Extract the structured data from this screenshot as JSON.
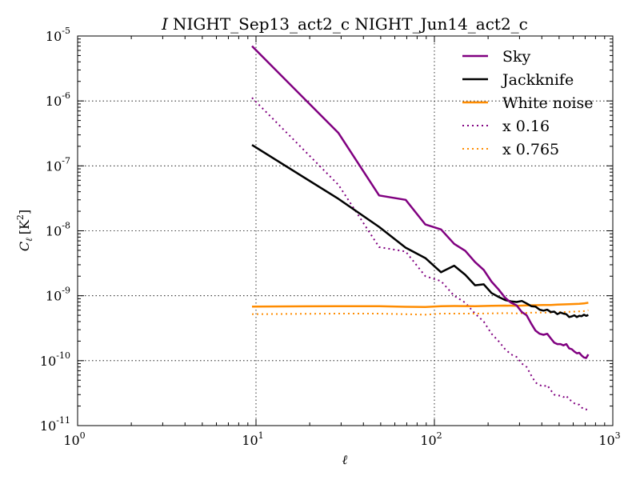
{
  "chart_data": {
    "type": "line",
    "title_symbol": "I",
    "title": "NIGHT_Sep13_act2_c NIGHT_Jun14_act2_c",
    "xlabel": "ℓ",
    "ylabel": "C",
    "ylabel_sub": "ℓ",
    "ylabel_unit": "[K",
    "ylabel_unit_exp": "2",
    "ylabel_unit_close": "]",
    "xscale": "log",
    "yscale": "log",
    "xlim": [
      1,
      1000
    ],
    "ylim": [
      1e-11,
      1e-05
    ],
    "grid": true,
    "legend_position": "top-right",
    "x_ticks": [
      {
        "value": 1,
        "base": "10",
        "exp": "0"
      },
      {
        "value": 10,
        "base": "10",
        "exp": "1"
      },
      {
        "value": 100,
        "base": "10",
        "exp": "2"
      },
      {
        "value": 1000,
        "base": "10",
        "exp": "3"
      }
    ],
    "y_ticks": [
      {
        "value": 1e-11,
        "base": "10",
        "exp": "-11"
      },
      {
        "value": 1e-10,
        "base": "10",
        "exp": "-10"
      },
      {
        "value": 1e-09,
        "base": "10",
        "exp": "-9"
      },
      {
        "value": 1e-08,
        "base": "10",
        "exp": "-8"
      },
      {
        "value": 1e-07,
        "base": "10",
        "exp": "-7"
      },
      {
        "value": 1e-06,
        "base": "10",
        "exp": "-6"
      },
      {
        "value": 1e-05,
        "base": "10",
        "exp": "-5"
      }
    ],
    "series": [
      {
        "name": "Sky",
        "color": "#800080",
        "style": "solid",
        "points": [
          [
            9.5,
            7e-06
          ],
          [
            29,
            3.2e-07
          ],
          [
            49,
            3.5e-08
          ],
          [
            69,
            3e-08
          ],
          [
            89,
            1.25e-08
          ],
          [
            109,
            1.05e-08
          ],
          [
            129,
            6.3e-09
          ],
          [
            149,
            4.9e-09
          ],
          [
            169,
            3.3e-09
          ],
          [
            189,
            2.5e-09
          ],
          [
            209,
            1.65e-09
          ],
          [
            229,
            1.25e-09
          ],
          [
            249,
            9.3e-10
          ],
          [
            269,
            7.8e-10
          ],
          [
            289,
            7.1e-10
          ],
          [
            309,
            5.6e-10
          ],
          [
            329,
            5e-10
          ],
          [
            349,
            3.7e-10
          ],
          [
            369,
            2.9e-10
          ],
          [
            389,
            2.6e-10
          ],
          [
            409,
            2.5e-10
          ],
          [
            429,
            2.6e-10
          ],
          [
            449,
            2.2e-10
          ],
          [
            469,
            1.9e-10
          ],
          [
            489,
            1.8e-10
          ],
          [
            509,
            1.8e-10
          ],
          [
            529,
            1.72e-10
          ],
          [
            549,
            1.8e-10
          ],
          [
            569,
            1.55e-10
          ],
          [
            589,
            1.5e-10
          ],
          [
            609,
            1.38e-10
          ],
          [
            629,
            1.3e-10
          ],
          [
            649,
            1.32e-10
          ],
          [
            669,
            1.2e-10
          ],
          [
            689,
            1.12e-10
          ],
          [
            709,
            1.1e-10
          ],
          [
            729,
            1.25e-10
          ]
        ]
      },
      {
        "name": "Jackknife",
        "color": "#000000",
        "style": "solid",
        "points": [
          [
            9.5,
            2.1e-07
          ],
          [
            29,
            3.1e-08
          ],
          [
            49,
            1.15e-08
          ],
          [
            69,
            5.5e-09
          ],
          [
            89,
            3.8e-09
          ],
          [
            109,
            2.3e-09
          ],
          [
            129,
            2.9e-09
          ],
          [
            149,
            2.1e-09
          ],
          [
            169,
            1.45e-09
          ],
          [
            189,
            1.5e-09
          ],
          [
            209,
            1.1e-09
          ],
          [
            229,
            9.6e-10
          ],
          [
            249,
            8.6e-10
          ],
          [
            269,
            8.2e-10
          ],
          [
            289,
            8e-10
          ],
          [
            309,
            8.3e-10
          ],
          [
            329,
            7.6e-10
          ],
          [
            349,
            6.9e-10
          ],
          [
            369,
            6.8e-10
          ],
          [
            389,
            6.1e-10
          ],
          [
            409,
            5.9e-10
          ],
          [
            429,
            6.1e-10
          ],
          [
            449,
            5.6e-10
          ],
          [
            469,
            5.7e-10
          ],
          [
            489,
            5.2e-10
          ],
          [
            509,
            5.5e-10
          ],
          [
            529,
            5.3e-10
          ],
          [
            549,
            5.2e-10
          ],
          [
            569,
            4.7e-10
          ],
          [
            589,
            4.8e-10
          ],
          [
            609,
            5e-10
          ],
          [
            629,
            4.7e-10
          ],
          [
            649,
            4.9e-10
          ],
          [
            669,
            4.85e-10
          ],
          [
            689,
            5.1e-10
          ],
          [
            709,
            4.9e-10
          ],
          [
            729,
            5.05e-10
          ]
        ]
      },
      {
        "name": "White noise",
        "color": "#ff8c00",
        "style": "solid",
        "points": [
          [
            9.5,
            6.8e-10
          ],
          [
            29,
            6.9e-10
          ],
          [
            49,
            6.9e-10
          ],
          [
            69,
            6.75e-10
          ],
          [
            89,
            6.7e-10
          ],
          [
            109,
            6.9e-10
          ],
          [
            129,
            6.95e-10
          ],
          [
            169,
            6.9e-10
          ],
          [
            209,
            7e-10
          ],
          [
            249,
            7.05e-10
          ],
          [
            289,
            7e-10
          ],
          [
            329,
            7.1e-10
          ],
          [
            369,
            7.15e-10
          ],
          [
            409,
            7.2e-10
          ],
          [
            449,
            7.2e-10
          ],
          [
            489,
            7.3e-10
          ],
          [
            529,
            7.35e-10
          ],
          [
            569,
            7.4e-10
          ],
          [
            609,
            7.45e-10
          ],
          [
            649,
            7.5e-10
          ],
          [
            689,
            7.6e-10
          ],
          [
            729,
            7.8e-10
          ]
        ]
      },
      {
        "name": "x 0.16",
        "color": "#800080",
        "style": "dotted",
        "points": [
          [
            9.5,
            1.12e-06
          ],
          [
            29,
            5.1e-08
          ],
          [
            49,
            5.6e-09
          ],
          [
            69,
            4.8e-09
          ],
          [
            89,
            2e-09
          ],
          [
            109,
            1.68e-09
          ],
          [
            129,
            1e-09
          ],
          [
            149,
            7.8e-10
          ],
          [
            169,
            5.3e-10
          ],
          [
            189,
            4e-10
          ],
          [
            209,
            2.6e-10
          ],
          [
            229,
            2e-10
          ],
          [
            249,
            1.5e-10
          ],
          [
            269,
            1.25e-10
          ],
          [
            289,
            1.14e-10
          ],
          [
            309,
            9e-11
          ],
          [
            329,
            8e-11
          ],
          [
            349,
            5.9e-11
          ],
          [
            369,
            4.6e-11
          ],
          [
            389,
            4.2e-11
          ],
          [
            409,
            4e-11
          ],
          [
            429,
            4.2e-11
          ],
          [
            449,
            3.5e-11
          ],
          [
            469,
            3e-11
          ],
          [
            489,
            2.9e-11
          ],
          [
            509,
            2.9e-11
          ],
          [
            529,
            2.75e-11
          ],
          [
            549,
            2.9e-11
          ],
          [
            569,
            2.5e-11
          ],
          [
            589,
            2.4e-11
          ],
          [
            609,
            2.2e-11
          ],
          [
            629,
            2.1e-11
          ],
          [
            649,
            2.1e-11
          ],
          [
            669,
            1.9e-11
          ],
          [
            689,
            1.8e-11
          ],
          [
            709,
            1.76e-11
          ],
          [
            729,
            2e-11
          ]
        ]
      },
      {
        "name": "x 0.765",
        "color": "#ff8c00",
        "style": "dotted",
        "points": [
          [
            9.5,
            5.2e-10
          ],
          [
            29,
            5.3e-10
          ],
          [
            49,
            5.3e-10
          ],
          [
            69,
            5.2e-10
          ],
          [
            89,
            5.1e-10
          ],
          [
            109,
            5.3e-10
          ],
          [
            129,
            5.3e-10
          ],
          [
            169,
            5.3e-10
          ],
          [
            209,
            5.35e-10
          ],
          [
            249,
            5.4e-10
          ],
          [
            289,
            5.35e-10
          ],
          [
            329,
            5.45e-10
          ],
          [
            369,
            5.5e-10
          ],
          [
            409,
            5.5e-10
          ],
          [
            449,
            5.5e-10
          ],
          [
            489,
            5.6e-10
          ],
          [
            529,
            5.6e-10
          ],
          [
            569,
            5.65e-10
          ],
          [
            609,
            5.7e-10
          ],
          [
            649,
            5.75e-10
          ],
          [
            689,
            5.8e-10
          ],
          [
            729,
            6e-10
          ]
        ]
      }
    ]
  }
}
